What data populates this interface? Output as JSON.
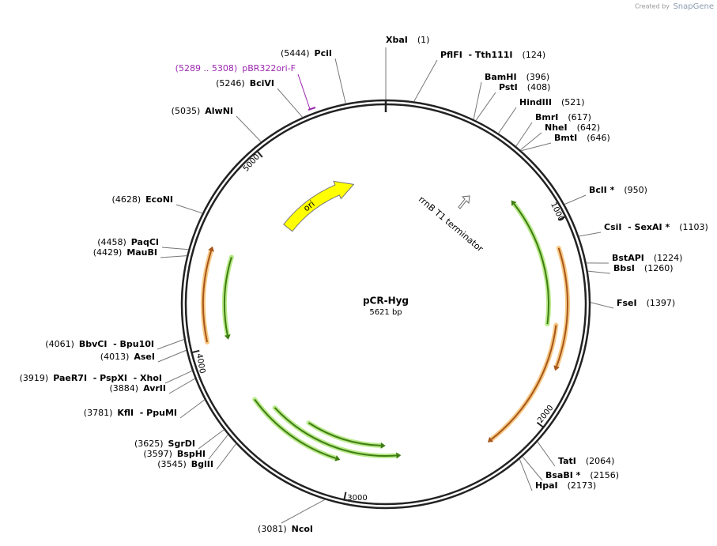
{
  "credit": {
    "prefix": "Created by",
    "brand": "SnapGene"
  },
  "map": {
    "name": "pCR-Hyg",
    "length": "5621 bp",
    "ring_ticks": [
      "1000",
      "2000",
      "3000",
      "4000",
      "5000"
    ]
  },
  "features": [
    {
      "label": "ori"
    },
    {
      "label": "rrnB T1 terminator"
    }
  ],
  "primer": {
    "range": "(5289 .. 5308)",
    "name": "pBR322ori-F"
  },
  "sites": [
    {
      "name": "XbaI",
      "position": "(1)"
    },
    {
      "name": "PflFI  - Tth111I",
      "position": "(124)"
    },
    {
      "name": "BamHI",
      "position": "(396)"
    },
    {
      "name": "PstI",
      "position": "(408)"
    },
    {
      "name": "HindIII",
      "position": "(521)"
    },
    {
      "name": "BmrI",
      "position": "(617)"
    },
    {
      "name": "NheI",
      "position": "(642)"
    },
    {
      "name": "BmtI",
      "position": "(646)"
    },
    {
      "name": "BclI *",
      "position": "(950)"
    },
    {
      "name": "CsiI  - SexAI *",
      "position": "(1103)"
    },
    {
      "name": "BstAPI",
      "position": "(1224)"
    },
    {
      "name": "BbsI",
      "position": "(1260)"
    },
    {
      "name": "FseI",
      "position": "(1397)"
    },
    {
      "name": "TatI",
      "position": "(2064)"
    },
    {
      "name": "BsaBI *",
      "position": "(2156)"
    },
    {
      "name": "HpaI",
      "position": "(2173)"
    },
    {
      "name": "NcoI",
      "position": "(3081)"
    },
    {
      "name": "BglII",
      "position": "(3545)"
    },
    {
      "name": "BspHI",
      "position": "(3597)"
    },
    {
      "name": "SgrDI",
      "position": "(3625)"
    },
    {
      "name": "KflI  - PpuMI",
      "position": "(3781)"
    },
    {
      "name": "AvrII",
      "position": "(3884)"
    },
    {
      "name": "PaeR7I  - PspXI  - XhoI",
      "position": "(3919)"
    },
    {
      "name": "AseI",
      "position": "(4013)"
    },
    {
      "name": "BbvCI  - Bpu10I",
      "position": "(4061)"
    },
    {
      "name": "MauBI",
      "position": "(4429)"
    },
    {
      "name": "PaqCI",
      "position": "(4458)"
    },
    {
      "name": "EcoNI",
      "position": "(4628)"
    },
    {
      "name": "AlwNI",
      "position": "(5035)"
    },
    {
      "name": "BciVI",
      "position": "(5246)"
    },
    {
      "name": "PciI",
      "position": "(5444)"
    }
  ]
}
